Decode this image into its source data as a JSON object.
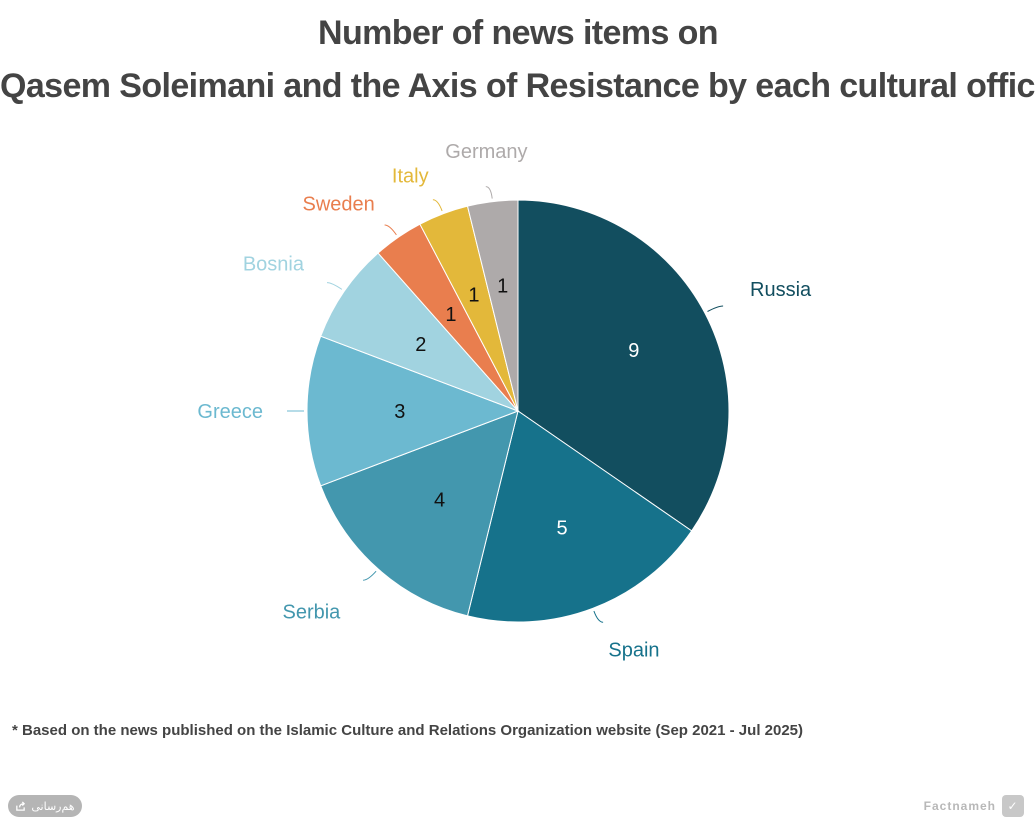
{
  "title_lines": [
    "Number of news items on",
    "Qasem Soleimani and the Axis of Resistance by each cultural office"
  ],
  "chart_data": {
    "type": "pie",
    "title": "Number of news items on Qasem Soleimani and the Axis of Resistance by each cultural office",
    "categories": [
      "Russia",
      "Spain",
      "Serbia",
      "Greece",
      "Bosnia",
      "Sweden",
      "Italy",
      "Germany"
    ],
    "values": [
      9,
      5,
      4,
      3,
      2,
      1,
      1,
      1
    ],
    "colors": [
      "#124e5f",
      "#16728b",
      "#4397ae",
      "#6cb9d0",
      "#a1d3e0",
      "#e97e4e",
      "#e3b83a",
      "#aeaaaa"
    ],
    "label_colors": [
      "#124e5f",
      "#16728b",
      "#4397ae",
      "#6cb9d0",
      "#a1d3e0",
      "#e97e4e",
      "#e3b83a",
      "#aeaaaa"
    ],
    "value_text_colors": [
      "#ffffff",
      "#ffffff",
      "#111111",
      "#111111",
      "#111111",
      "#111111",
      "#111111",
      "#111111"
    ],
    "start_angle_deg": 0,
    "direction": "clockwise"
  },
  "footnote": "* Based on the news published on the Islamic Culture and Relations Organization website (Sep 2021 - Jul 2025)",
  "share_button": {
    "label": "هم‌رسانی",
    "icon": "share-icon"
  },
  "brand": {
    "name": "Factnameh",
    "icon": "factnameh-logo-icon"
  }
}
